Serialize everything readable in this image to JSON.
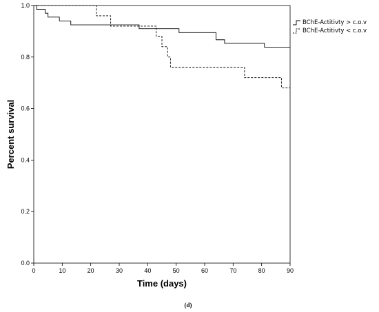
{
  "chart_data": {
    "type": "line",
    "subtype": "kaplan-meier step",
    "title": "",
    "xlabel": "Time (days)",
    "ylabel": "Percent survival",
    "xlim": [
      0,
      90
    ],
    "ylim": [
      0,
      1.0
    ],
    "x_ticks": [
      "0",
      "10",
      "20",
      "30",
      "40",
      "50",
      "60",
      "70",
      "80",
      "90"
    ],
    "y_ticks": [
      "0.0",
      "0.2",
      "0.4",
      "0.6",
      "0.8",
      "1.0"
    ],
    "grid": false,
    "legend_position": "top-right",
    "series": [
      {
        "name": "BChE-Actitivty > c.o.v",
        "line_style": "solid",
        "points": [
          [
            0,
            1.0
          ],
          [
            1,
            0.985
          ],
          [
            4,
            0.97
          ],
          [
            5,
            0.955
          ],
          [
            9,
            0.94
          ],
          [
            13,
            0.925
          ],
          [
            37,
            0.91
          ],
          [
            51,
            0.895
          ],
          [
            64,
            0.867
          ],
          [
            67,
            0.853
          ],
          [
            81,
            0.838
          ],
          [
            90,
            0.838
          ]
        ]
      },
      {
        "name": "BChE-Actitivty < c.o.v",
        "line_style": "dashed",
        "points": [
          [
            0,
            1.0
          ],
          [
            22,
            0.96
          ],
          [
            27,
            0.92
          ],
          [
            43,
            0.88
          ],
          [
            45,
            0.84
          ],
          [
            47,
            0.8
          ],
          [
            48,
            0.76
          ],
          [
            74,
            0.72
          ],
          [
            87,
            0.68
          ],
          [
            90,
            0.68
          ]
        ]
      }
    ],
    "panel_label": "(d)"
  }
}
